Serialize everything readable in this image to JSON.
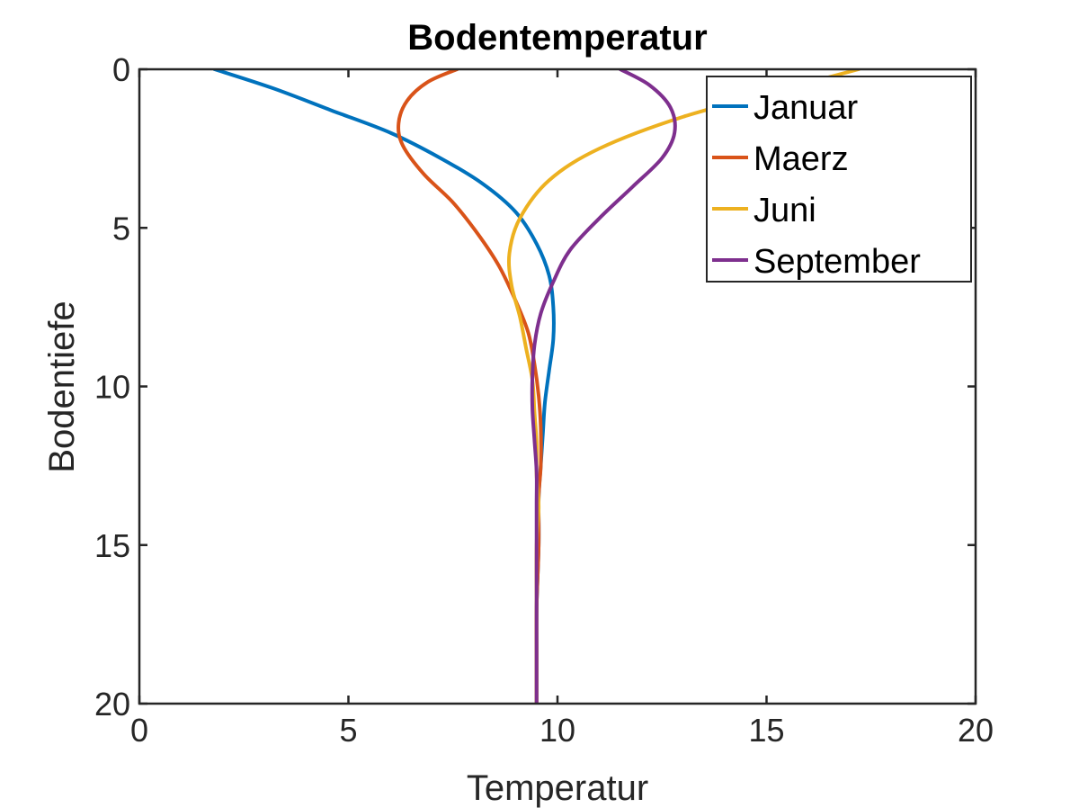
{
  "chart_data": {
    "type": "line",
    "title": "Bodentemperatur",
    "xlabel": "Temperatur",
    "ylabel": "Bodentiefe",
    "xlim": [
      0,
      20
    ],
    "ylim": [
      0,
      20
    ],
    "y_reversed": true,
    "x_ticks": [
      "0",
      "5",
      "10",
      "15",
      "20"
    ],
    "y_ticks": [
      "0",
      "5",
      "10",
      "15",
      "20"
    ],
    "grid": false,
    "legend_position": "top-right",
    "series": [
      {
        "name": "Januar",
        "color": "#0072BD",
        "points": [
          [
            1.8,
            0
          ],
          [
            3.2,
            0.6
          ],
          [
            4.6,
            1.3
          ],
          [
            6.0,
            2.0
          ],
          [
            7.2,
            2.8
          ],
          [
            8.2,
            3.6
          ],
          [
            9.0,
            4.5
          ],
          [
            9.5,
            5.5
          ],
          [
            9.8,
            6.5
          ],
          [
            9.9,
            7.5
          ],
          [
            9.9,
            8.5
          ],
          [
            9.8,
            9.5
          ],
          [
            9.7,
            10.5
          ],
          [
            9.65,
            11.5
          ],
          [
            9.6,
            12.5
          ],
          [
            9.55,
            13.5
          ],
          [
            9.55,
            15
          ],
          [
            9.5,
            17
          ],
          [
            9.5,
            18.5
          ],
          [
            9.5,
            20
          ]
        ]
      },
      {
        "name": "Maerz",
        "color": "#D95319",
        "points": [
          [
            7.6,
            0
          ],
          [
            6.9,
            0.4
          ],
          [
            6.4,
            1.0
          ],
          [
            6.2,
            1.7
          ],
          [
            6.3,
            2.4
          ],
          [
            6.8,
            3.3
          ],
          [
            7.5,
            4.2
          ],
          [
            8.1,
            5.2
          ],
          [
            8.6,
            6.2
          ],
          [
            9.0,
            7.3
          ],
          [
            9.3,
            8.3
          ],
          [
            9.45,
            9.3
          ],
          [
            9.55,
            10.3
          ],
          [
            9.6,
            11.3
          ],
          [
            9.6,
            12.5
          ],
          [
            9.55,
            13.5
          ],
          [
            9.55,
            15
          ],
          [
            9.5,
            17
          ],
          [
            9.5,
            18.5
          ],
          [
            9.5,
            20
          ]
        ]
      },
      {
        "name": "Juni",
        "color": "#EDB120",
        "points": [
          [
            17.2,
            0
          ],
          [
            15.5,
            0.6
          ],
          [
            13.0,
            1.5
          ],
          [
            11.0,
            2.5
          ],
          [
            9.8,
            3.5
          ],
          [
            9.1,
            4.7
          ],
          [
            8.85,
            5.8
          ],
          [
            8.9,
            6.8
          ],
          [
            9.1,
            7.8
          ],
          [
            9.25,
            8.8
          ],
          [
            9.4,
            9.8
          ],
          [
            9.45,
            10.8
          ],
          [
            9.5,
            11.8
          ],
          [
            9.5,
            12.8
          ],
          [
            9.55,
            13.8
          ],
          [
            9.5,
            15
          ],
          [
            9.5,
            17
          ],
          [
            9.5,
            18.5
          ],
          [
            9.5,
            20
          ]
        ]
      },
      {
        "name": "September",
        "color": "#7E2F8E",
        "points": [
          [
            11.5,
            0
          ],
          [
            12.2,
            0.5
          ],
          [
            12.7,
            1.2
          ],
          [
            12.8,
            2.0
          ],
          [
            12.5,
            2.8
          ],
          [
            11.8,
            3.7
          ],
          [
            11.0,
            4.7
          ],
          [
            10.3,
            5.7
          ],
          [
            9.9,
            6.7
          ],
          [
            9.6,
            7.7
          ],
          [
            9.45,
            8.7
          ],
          [
            9.4,
            9.7
          ],
          [
            9.4,
            10.7
          ],
          [
            9.45,
            11.7
          ],
          [
            9.5,
            12.7
          ],
          [
            9.5,
            13.7
          ],
          [
            9.5,
            15
          ],
          [
            9.5,
            17
          ],
          [
            9.5,
            18.5
          ],
          [
            9.5,
            20
          ]
        ]
      }
    ]
  }
}
